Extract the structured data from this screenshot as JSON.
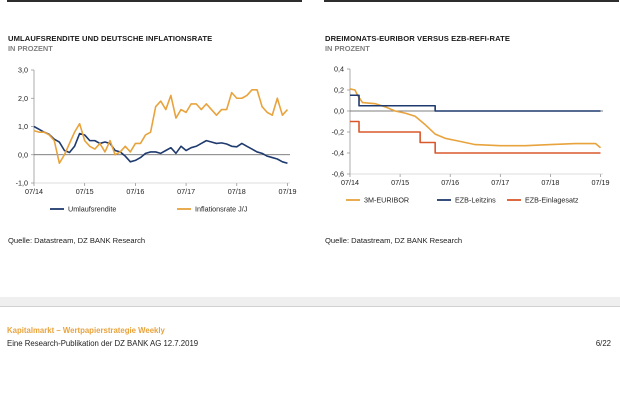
{
  "left_panel": {
    "title": "UMLAUFSRENDITE UND DEUTSCHE INFLATIONSRATE",
    "subtitle": "IN PROZENT",
    "source": "Quelle: Datastream, DZ BANK Research"
  },
  "right_panel": {
    "title": "DREIMONATS-EURIBOR VERSUS EZB-REFI-RATE",
    "subtitle": "IN PROZENT",
    "source": "Quelle: Datastream, DZ BANK Research"
  },
  "footer": {
    "title": "Kapitalmarkt – Wertpapierstrategie Weekly",
    "line": "Eine Research-Publikation der DZ BANK AG    12.7.2019",
    "page": "6/22"
  },
  "colors": {
    "navy": "#1f3a6e",
    "orange": "#e8a33d",
    "red": "#d9582b",
    "zero_line": "#555555"
  },
  "chart_data": [
    {
      "type": "line",
      "title": "UMLAUFSRENDITE UND DEUTSCHE INFLATIONSRATE",
      "subtitle": "IN PROZENT",
      "x_range": [
        2014.5,
        2019.55
      ],
      "ylim": [
        -1.0,
        3.0
      ],
      "yticks": [
        "3,0",
        "2,0",
        "1,0",
        "0,0",
        "-1,0"
      ],
      "ytick_values": [
        3,
        2,
        1,
        0,
        -1
      ],
      "xticks": [
        "07/14",
        "07/15",
        "07/16",
        "07/17",
        "07/18",
        "07/19"
      ],
      "xtick_values": [
        2014.5,
        2015.5,
        2016.5,
        2017.5,
        2018.5,
        2019.5
      ],
      "legend_position": "bottom",
      "series": [
        {
          "name": "Umlaufsrendite",
          "color": "#1f3a6e",
          "x": [
            2014.5,
            2014.6,
            2014.7,
            2014.8,
            2014.9,
            2015.0,
            2015.1,
            2015.2,
            2015.3,
            2015.4,
            2015.5,
            2015.6,
            2015.7,
            2015.8,
            2015.9,
            2016.0,
            2016.1,
            2016.2,
            2016.3,
            2016.4,
            2016.5,
            2016.6,
            2016.7,
            2016.8,
            2016.9,
            2017.0,
            2017.1,
            2017.2,
            2017.3,
            2017.4,
            2017.5,
            2017.6,
            2017.7,
            2017.8,
            2017.9,
            2018.0,
            2018.1,
            2018.2,
            2018.3,
            2018.4,
            2018.5,
            2018.6,
            2018.7,
            2018.8,
            2018.9,
            2019.0,
            2019.1,
            2019.2,
            2019.3,
            2019.4,
            2019.5
          ],
          "y": [
            1.0,
            0.9,
            0.8,
            0.72,
            0.55,
            0.45,
            0.15,
            0.08,
            0.3,
            0.75,
            0.7,
            0.5,
            0.5,
            0.4,
            0.45,
            0.4,
            0.15,
            0.1,
            -0.05,
            -0.25,
            -0.2,
            -0.1,
            0.05,
            0.1,
            0.1,
            0.05,
            0.15,
            0.25,
            0.05,
            0.3,
            0.15,
            0.25,
            0.3,
            0.4,
            0.5,
            0.45,
            0.4,
            0.42,
            0.38,
            0.3,
            0.28,
            0.4,
            0.3,
            0.2,
            0.1,
            0.05,
            -0.05,
            -0.1,
            -0.15,
            -0.25,
            -0.3
          ]
        },
        {
          "name": "Inflationsrate J/J",
          "color": "#e8a33d",
          "x": [
            2014.5,
            2014.6,
            2014.7,
            2014.8,
            2014.9,
            2015.0,
            2015.1,
            2015.2,
            2015.3,
            2015.4,
            2015.5,
            2015.6,
            2015.7,
            2015.8,
            2015.9,
            2016.0,
            2016.1,
            2016.2,
            2016.3,
            2016.4,
            2016.5,
            2016.6,
            2016.7,
            2016.8,
            2016.9,
            2017.0,
            2017.1,
            2017.2,
            2017.3,
            2017.4,
            2017.5,
            2017.6,
            2017.7,
            2017.8,
            2017.9,
            2018.0,
            2018.1,
            2018.2,
            2018.3,
            2018.4,
            2018.5,
            2018.6,
            2018.7,
            2018.8,
            2018.9,
            2019.0,
            2019.1,
            2019.2,
            2019.3,
            2019.4,
            2019.5
          ],
          "y": [
            0.85,
            0.8,
            0.8,
            0.7,
            0.5,
            -0.3,
            0.0,
            0.4,
            0.8,
            1.1,
            0.5,
            0.3,
            0.2,
            0.4,
            0.1,
            0.5,
            0.0,
            0.1,
            0.3,
            0.1,
            0.4,
            0.4,
            0.7,
            0.8,
            1.7,
            1.9,
            1.6,
            2.1,
            1.3,
            1.6,
            1.5,
            1.8,
            1.8,
            1.6,
            1.8,
            1.6,
            1.4,
            1.6,
            1.6,
            2.2,
            2.0,
            2.0,
            2.1,
            2.3,
            2.3,
            1.7,
            1.5,
            1.4,
            2.0,
            1.4,
            1.6
          ]
        }
      ]
    },
    {
      "type": "line",
      "title": "DREIMONATS-EURIBOR VERSUS EZB-REFI-RATE",
      "subtitle": "IN PROZENT",
      "x_range": [
        2014.5,
        2019.55
      ],
      "ylim": [
        -0.6,
        0.4
      ],
      "yticks": [
        "0,4",
        "0,2",
        "0,0",
        "-0,2",
        "-0,4",
        "-0,6"
      ],
      "ytick_values": [
        0.4,
        0.2,
        0.0,
        -0.2,
        -0.4,
        -0.6
      ],
      "xticks": [
        "07/14",
        "07/15",
        "07/16",
        "07/17",
        "07/18",
        "07/19"
      ],
      "xtick_values": [
        2014.5,
        2015.5,
        2016.5,
        2017.5,
        2018.5,
        2019.5
      ],
      "legend_position": "bottom",
      "series": [
        {
          "name": "3M-EURIBOR",
          "color": "#e8a33d",
          "x": [
            2014.5,
            2014.6,
            2014.65,
            2014.75,
            2015.0,
            2015.2,
            2015.4,
            2015.6,
            2015.8,
            2016.0,
            2016.2,
            2016.4,
            2016.6,
            2016.8,
            2017.0,
            2017.5,
            2018.0,
            2018.5,
            2019.0,
            2019.2,
            2019.4,
            2019.5
          ],
          "y": [
            0.21,
            0.2,
            0.15,
            0.08,
            0.07,
            0.04,
            0.0,
            -0.02,
            -0.05,
            -0.13,
            -0.22,
            -0.26,
            -0.28,
            -0.3,
            -0.32,
            -0.33,
            -0.33,
            -0.32,
            -0.31,
            -0.31,
            -0.31,
            -0.35
          ]
        },
        {
          "name": "EZB-Leitzins",
          "color": "#1f3a6e",
          "x": [
            2014.5,
            2014.68,
            2014.68,
            2016.2,
            2016.2,
            2019.5
          ],
          "y": [
            0.15,
            0.15,
            0.05,
            0.05,
            0.0,
            0.0
          ]
        },
        {
          "name": "EZB-Einlagesatz",
          "color": "#d9582b",
          "x": [
            2014.5,
            2014.68,
            2014.68,
            2015.9,
            2015.9,
            2016.2,
            2016.2,
            2019.5
          ],
          "y": [
            -0.1,
            -0.1,
            -0.2,
            -0.2,
            -0.3,
            -0.3,
            -0.4,
            -0.4
          ]
        }
      ]
    }
  ]
}
